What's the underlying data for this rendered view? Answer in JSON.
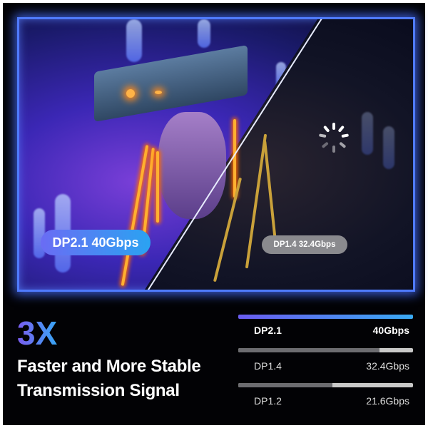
{
  "scene": {
    "badge_new": "DP2.1  40Gbps",
    "badge_old": "DP1.4  32.4Gbps",
    "loading_icon": "spinner-icon"
  },
  "headline": {
    "multiplier": "3X",
    "line1": "Faster and More Stable",
    "line2": "Transmission Signal"
  },
  "comparison": [
    {
      "name": "DP2.1",
      "speed": "40Gbps",
      "fill_percent": 100,
      "highlight": true
    },
    {
      "name": "DP1.4",
      "speed": "32.4Gbps",
      "fill_percent": 81,
      "highlight": false
    },
    {
      "name": "DP1.2",
      "speed": "21.6Gbps",
      "fill_percent": 54,
      "highlight": false
    }
  ],
  "colors": {
    "accent_start": "#6a5cf0",
    "accent_end": "#3aaaf2",
    "frame": "#4f7bff"
  }
}
